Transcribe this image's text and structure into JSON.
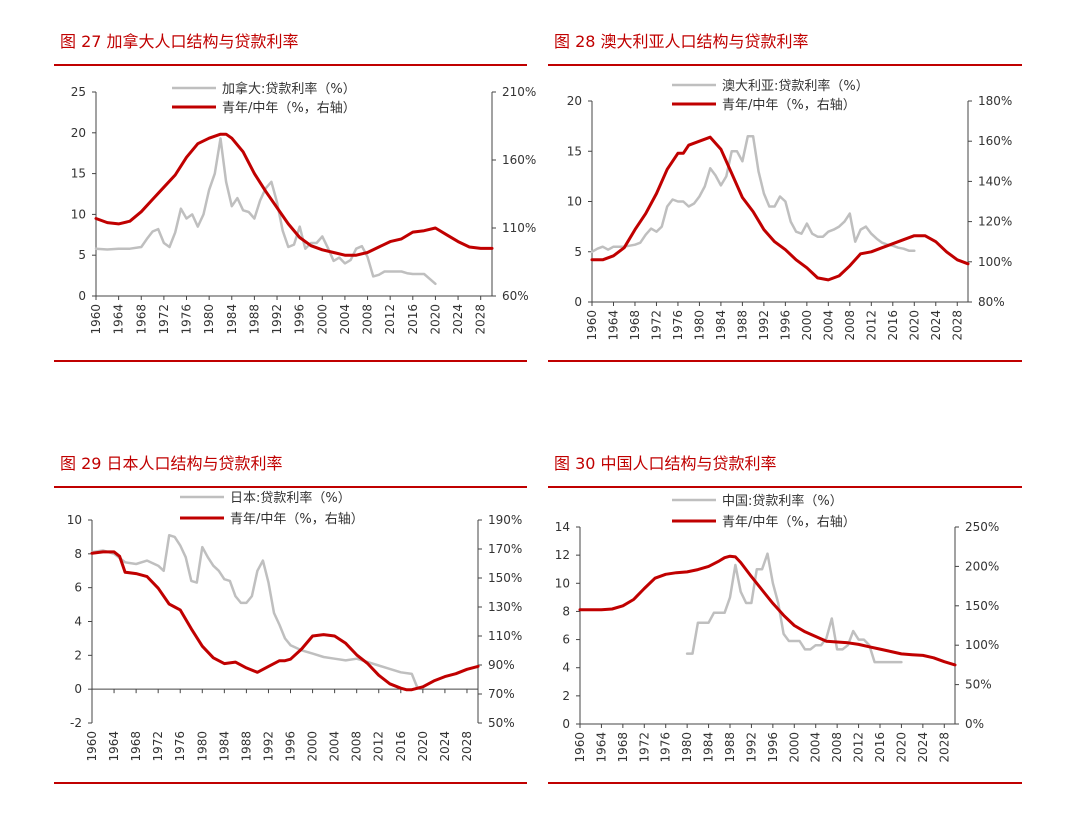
{
  "colors": {
    "title": "#c00000",
    "rule": "#c00000",
    "rate_line": "#bfbfbf",
    "ratio_line": "#c00000",
    "axis": "#444444"
  },
  "chart_data": [
    {
      "type": "line",
      "title": "图 27 加拿大人口结构与贷款利率",
      "series": [
        {
          "name": "加拿大:贷款利率（%）",
          "axis": "left",
          "x": [
            1960,
            1962,
            1964,
            1966,
            1968,
            1969,
            1970,
            1971,
            1972,
            1973,
            1974,
            1975,
            1976,
            1977,
            1978,
            1979,
            1980,
            1981,
            1982,
            1983,
            1984,
            1985,
            1986,
            1987,
            1988,
            1989,
            1990,
            1991,
            1992,
            1993,
            1994,
            1995,
            1996,
            1997,
            1998,
            1999,
            2000,
            2001,
            2002,
            2003,
            2004,
            2005,
            2006,
            2007,
            2008,
            2009,
            2010,
            2011,
            2012,
            2013,
            2014,
            2015,
            2016,
            2017,
            2018,
            2019,
            2020
          ],
          "values": [
            5.8,
            5.7,
            5.8,
            5.8,
            6.0,
            7.0,
            7.9,
            8.2,
            6.5,
            6.0,
            7.8,
            10.7,
            9.5,
            10.0,
            8.5,
            10.0,
            13.0,
            15.0,
            19.3,
            14.0,
            11.0,
            12.0,
            10.5,
            10.3,
            9.5,
            11.7,
            13.2,
            14.0,
            11.5,
            8.0,
            6.0,
            6.3,
            8.5,
            5.8,
            6.5,
            6.5,
            7.3,
            5.9,
            4.3,
            4.7,
            4.0,
            4.4,
            5.8,
            6.1,
            4.8,
            2.4,
            2.6,
            3.0,
            3.0,
            3.0,
            3.0,
            2.8,
            2.7,
            2.7,
            2.7,
            2.1,
            1.5
          ]
        },
        {
          "name": "青年/中年（%，右轴）",
          "axis": "right",
          "x": [
            1960,
            1962,
            1964,
            1966,
            1968,
            1970,
            1972,
            1974,
            1976,
            1978,
            1980,
            1982,
            1983,
            1984,
            1986,
            1988,
            1990,
            1992,
            1994,
            1996,
            1998,
            2000,
            2002,
            2004,
            2006,
            2008,
            2010,
            2012,
            2014,
            2016,
            2018,
            2020,
            2022,
            2024,
            2026,
            2028,
            2030
          ],
          "values": [
            117,
            114,
            113,
            115,
            122,
            131,
            140,
            149,
            162,
            172,
            176,
            179,
            179,
            176,
            166,
            150,
            137,
            125,
            113,
            103,
            97,
            94,
            92,
            90,
            90,
            92,
            96,
            100,
            102,
            107,
            108,
            110,
            105,
            100,
            96,
            95,
            95
          ]
        }
      ],
      "xlim": [
        1960,
        2030
      ],
      "xticks": [
        1960,
        1964,
        1968,
        1972,
        1976,
        1980,
        1984,
        1988,
        1992,
        1996,
        2000,
        2004,
        2008,
        2012,
        2016,
        2020,
        2024,
        2028
      ],
      "ylim": [
        0,
        25
      ],
      "yticks": [
        0,
        5,
        10,
        15,
        20,
        25
      ],
      "y2lim": [
        60,
        210
      ],
      "y2ticks": [
        60,
        110,
        160,
        210
      ],
      "y2_format": "percent",
      "legend_position": "top-center",
      "grid": false
    },
    {
      "type": "line",
      "title": "图 28 澳大利亚人口结构与贷款利率",
      "series": [
        {
          "name": "澳大利亚:贷款利率（%）",
          "axis": "left",
          "x": [
            1960,
            1961,
            1962,
            1963,
            1964,
            1966,
            1968,
            1969,
            1970,
            1971,
            1972,
            1973,
            1974,
            1975,
            1976,
            1977,
            1978,
            1979,
            1980,
            1981,
            1982,
            1983,
            1984,
            1985,
            1986,
            1987,
            1988,
            1989,
            1990,
            1991,
            1992,
            1993,
            1994,
            1995,
            1996,
            1997,
            1998,
            1999,
            2000,
            2001,
            2002,
            2003,
            2004,
            2005,
            2006,
            2007,
            2008,
            2009,
            2010,
            2011,
            2012,
            2013,
            2014,
            2015,
            2016,
            2017,
            2018,
            2019,
            2020
          ],
          "values": [
            5.0,
            5.3,
            5.5,
            5.2,
            5.5,
            5.5,
            5.7,
            5.9,
            6.7,
            7.3,
            7.0,
            7.5,
            9.5,
            10.2,
            10.0,
            10.0,
            9.5,
            9.8,
            10.5,
            11.5,
            13.3,
            12.6,
            11.6,
            12.5,
            15.0,
            15.0,
            14.0,
            16.5,
            16.5,
            13.0,
            10.8,
            9.5,
            9.5,
            10.5,
            10.0,
            8.0,
            7.0,
            6.8,
            7.8,
            6.8,
            6.5,
            6.5,
            7.0,
            7.2,
            7.5,
            8.0,
            8.8,
            6.0,
            7.2,
            7.5,
            6.8,
            6.3,
            5.9,
            5.7,
            5.6,
            5.4,
            5.3,
            5.1,
            5.1
          ]
        },
        {
          "name": "青年/中年（%，右轴）",
          "axis": "right",
          "x": [
            1960,
            1962,
            1964,
            1966,
            1968,
            1970,
            1972,
            1974,
            1976,
            1977,
            1978,
            1980,
            1982,
            1984,
            1986,
            1988,
            1990,
            1992,
            1994,
            1996,
            1998,
            2000,
            2002,
            2004,
            2006,
            2008,
            2010,
            2012,
            2014,
            2016,
            2018,
            2020,
            2022,
            2024,
            2026,
            2028,
            2030
          ],
          "values": [
            101,
            101,
            103,
            107,
            116,
            124,
            134,
            146,
            154,
            154,
            158,
            160,
            162,
            156,
            144,
            132,
            125,
            116,
            110,
            106,
            101,
            97,
            92,
            91,
            93,
            98,
            104,
            105,
            107,
            109,
            111,
            113,
            113,
            110,
            105,
            101,
            99
          ]
        }
      ],
      "xlim": [
        1960,
        2030
      ],
      "xticks": [
        1960,
        1964,
        1968,
        1972,
        1976,
        1980,
        1984,
        1988,
        1992,
        1996,
        2000,
        2004,
        2008,
        2012,
        2016,
        2020,
        2024,
        2028
      ],
      "ylim": [
        0,
        20
      ],
      "yticks": [
        0,
        5,
        10,
        15,
        20
      ],
      "y2lim": [
        80,
        180
      ],
      "y2ticks": [
        80,
        100,
        120,
        140,
        160,
        180
      ],
      "y2_format": "percent",
      "legend_position": "top-center",
      "grid": false
    },
    {
      "type": "line",
      "title": "图 29 日本人口结构与贷款利率",
      "series": [
        {
          "name": "日本:贷款利率（%）",
          "axis": "left",
          "x": [
            1960,
            1962,
            1964,
            1966,
            1968,
            1970,
            1972,
            1973,
            1974,
            1975,
            1976,
            1977,
            1978,
            1979,
            1980,
            1981,
            1982,
            1983,
            1984,
            1985,
            1986,
            1987,
            1988,
            1989,
            1990,
            1991,
            1992,
            1993,
            1994,
            1995,
            1996,
            1998,
            2000,
            2002,
            2004,
            2006,
            2008,
            2010,
            2012,
            2014,
            2016,
            2018,
            2019,
            2020
          ],
          "values": [
            8.1,
            8.2,
            8.0,
            7.5,
            7.4,
            7.6,
            7.3,
            7.0,
            9.1,
            9.0,
            8.5,
            7.8,
            6.4,
            6.3,
            8.4,
            7.8,
            7.3,
            7.0,
            6.5,
            6.4,
            5.5,
            5.1,
            5.1,
            5.5,
            7.0,
            7.6,
            6.3,
            4.5,
            3.8,
            3.0,
            2.6,
            2.3,
            2.1,
            1.9,
            1.8,
            1.7,
            1.8,
            1.6,
            1.4,
            1.2,
            1.0,
            0.9,
            0.1,
            0.1
          ]
        },
        {
          "name": "青年/中年（%，右轴）",
          "axis": "right",
          "x": [
            1960,
            1962,
            1964,
            1965,
            1966,
            1968,
            1970,
            1972,
            1974,
            1975,
            1976,
            1978,
            1980,
            1982,
            1984,
            1986,
            1988,
            1990,
            1992,
            1994,
            1995,
            1996,
            1998,
            2000,
            2002,
            2004,
            2006,
            2008,
            2010,
            2012,
            2014,
            2016,
            2017,
            2018,
            2020,
            2022,
            2024,
            2026,
            2028,
            2030
          ],
          "values": [
            167,
            168,
            168,
            165,
            154,
            153,
            151,
            143,
            132,
            130,
            128,
            115,
            103,
            95,
            91,
            92,
            88,
            85,
            89,
            93,
            93,
            94,
            101,
            110,
            111,
            110,
            105,
            97,
            91,
            83,
            77,
            74,
            73,
            73,
            75,
            79,
            82,
            84,
            87,
            89
          ]
        }
      ],
      "xlim": [
        1960,
        2030
      ],
      "xticks": [
        1960,
        1964,
        1968,
        1972,
        1976,
        1980,
        1984,
        1988,
        1992,
        1996,
        2000,
        2004,
        2008,
        2012,
        2016,
        2020,
        2024,
        2028
      ],
      "ylim": [
        -2,
        10
      ],
      "yticks": [
        -2,
        0,
        2,
        4,
        6,
        8,
        10
      ],
      "y2lim": [
        50,
        190
      ],
      "y2ticks": [
        50,
        70,
        90,
        110,
        130,
        150,
        170,
        190
      ],
      "y2_format": "percent",
      "legend_position": "top-center",
      "grid": false
    },
    {
      "type": "line",
      "title": "图 30 中国人口结构与贷款利率",
      "series": [
        {
          "name": "中国:贷款利率（%）",
          "axis": "left",
          "x": [
            1980,
            1981,
            1982,
            1983,
            1984,
            1985,
            1986,
            1987,
            1988,
            1989,
            1990,
            1991,
            1992,
            1993,
            1994,
            1995,
            1996,
            1997,
            1998,
            1999,
            2000,
            2001,
            2002,
            2003,
            2004,
            2005,
            2006,
            2007,
            2008,
            2009,
            2010,
            2011,
            2012,
            2013,
            2014,
            2015,
            2016,
            2017,
            2018,
            2019,
            2020
          ],
          "values": [
            5.0,
            5.0,
            7.2,
            7.2,
            7.2,
            7.9,
            7.9,
            7.9,
            9.0,
            11.3,
            9.4,
            8.6,
            8.6,
            11.0,
            11.0,
            12.1,
            10.0,
            8.6,
            6.4,
            5.9,
            5.9,
            5.9,
            5.3,
            5.3,
            5.6,
            5.6,
            6.1,
            7.5,
            5.3,
            5.3,
            5.6,
            6.6,
            6.0,
            6.0,
            5.6,
            4.4,
            4.4,
            4.4,
            4.4,
            4.4,
            4.4
          ]
        },
        {
          "name": "青年/中年（%，右轴）",
          "axis": "right",
          "x": [
            1960,
            1962,
            1964,
            1966,
            1968,
            1970,
            1972,
            1974,
            1976,
            1978,
            1980,
            1982,
            1984,
            1986,
            1987,
            1988,
            1989,
            1990,
            1992,
            1994,
            1996,
            1998,
            2000,
            2002,
            2004,
            2006,
            2008,
            2010,
            2012,
            2014,
            2016,
            2018,
            2020,
            2022,
            2024,
            2026,
            2028,
            2030
          ],
          "values": [
            145,
            145,
            145,
            146,
            150,
            158,
            172,
            185,
            190,
            192,
            193,
            196,
            200,
            207,
            211,
            213,
            212,
            205,
            187,
            170,
            153,
            138,
            125,
            117,
            111,
            105,
            104,
            103,
            101,
            98,
            95,
            92,
            89,
            88,
            87,
            84,
            79,
            75
          ]
        }
      ],
      "xlim": [
        1960,
        2030
      ],
      "xticks": [
        1960,
        1964,
        1968,
        1972,
        1976,
        1980,
        1984,
        1988,
        1992,
        1996,
        2000,
        2004,
        2008,
        2012,
        2016,
        2020,
        2024,
        2028
      ],
      "ylim": [
        0,
        14
      ],
      "yticks": [
        0,
        2,
        4,
        6,
        8,
        10,
        12,
        14
      ],
      "y2lim": [
        0,
        250
      ],
      "y2ticks": [
        0,
        50,
        100,
        150,
        200,
        250
      ],
      "y2_format": "percent",
      "legend_position": "top-center",
      "grid": false
    }
  ]
}
